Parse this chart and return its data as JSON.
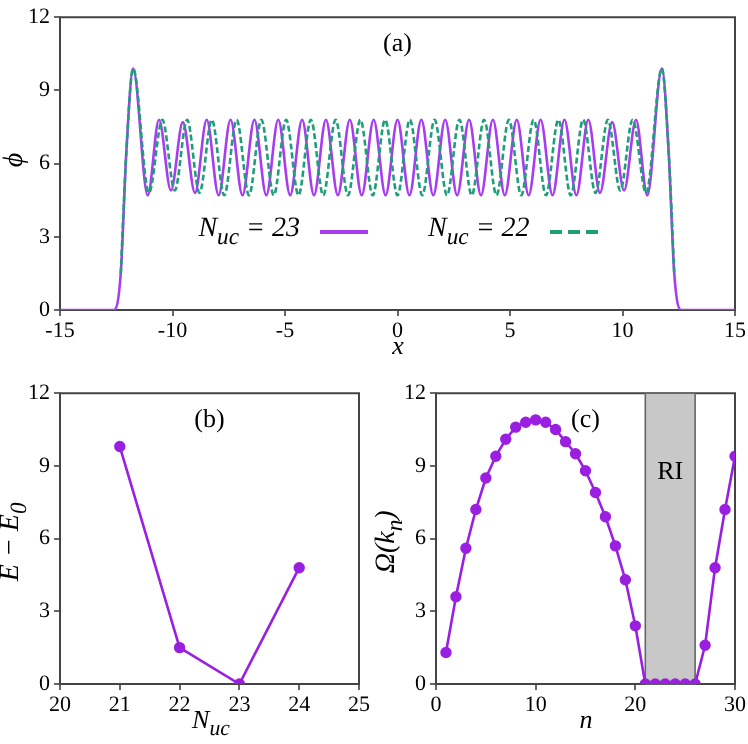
{
  "chart_data": [
    {
      "type": "line",
      "title": "(a)",
      "xlabel": "x",
      "ylabel": "ϕ",
      "xlim": [
        -15,
        15
      ],
      "xticks": [
        -15,
        -10,
        -5,
        0,
        5,
        10,
        15
      ],
      "ylim": [
        0,
        12
      ],
      "yticks": [
        0,
        3,
        6,
        9,
        12
      ],
      "legend": "bottom",
      "marker": "none",
      "series": [
        {
          "name": "N$_{uc}$ = 23",
          "color": "#a83cf0",
          "line_style": "solid",
          "x": [
            -15,
            -12.6,
            -12.3,
            -12.05,
            -11.75,
            -11.1,
            -10.6,
            -10.07,
            -9.54,
            -9.0,
            -8.48,
            -7.95,
            -7.42,
            -6.89,
            -6.36,
            -5.83,
            -5.3,
            -4.77,
            -4.24,
            -3.71,
            -3.18,
            -2.65,
            -2.12,
            -1.59,
            -1.06,
            -0.53,
            0,
            0.53,
            1.06,
            1.59,
            2.12,
            2.65,
            3.18,
            3.71,
            4.24,
            4.77,
            5.3,
            5.83,
            6.36,
            6.89,
            7.42,
            7.95,
            8.48,
            9.0,
            9.54,
            10.07,
            10.6,
            11.1,
            11.75,
            12.05,
            12.3,
            12.6,
            15
          ],
          "values": [
            0,
            0,
            1.5,
            6.5,
            9.9,
            4.7,
            7.8,
            4.9,
            7.7,
            4.8,
            7.8,
            4.7,
            7.8,
            4.7,
            7.8,
            4.7,
            7.8,
            4.7,
            7.8,
            4.7,
            7.8,
            4.7,
            7.8,
            4.7,
            7.8,
            4.7,
            7.8,
            4.7,
            7.8,
            4.7,
            7.8,
            4.7,
            7.8,
            4.7,
            7.8,
            4.7,
            7.8,
            4.7,
            7.8,
            4.7,
            7.8,
            4.7,
            7.8,
            4.8,
            7.7,
            4.9,
            7.8,
            4.7,
            9.9,
            6.5,
            1.5,
            0,
            0
          ]
        },
        {
          "name": "N$_{uc}$ = 22",
          "color": "#1f9e7a",
          "line_style": "dashed",
          "x": [
            -12.3,
            -12.05,
            -11.75,
            -11.05,
            -10.45,
            -9.9,
            -9.35,
            -8.8,
            -8.25,
            -7.7,
            -7.15,
            -6.6,
            -6.05,
            -5.5,
            -4.95,
            -4.4,
            -3.85,
            -3.3,
            -2.75,
            -2.2,
            -1.65,
            -1.1,
            -0.55,
            0,
            0.55,
            1.1,
            1.65,
            2.2,
            2.75,
            3.3,
            3.85,
            4.4,
            4.95,
            5.5,
            6.05,
            6.6,
            7.15,
            7.7,
            8.25,
            8.8,
            9.35,
            9.9,
            10.45,
            11.05,
            11.75,
            12.05,
            12.3
          ],
          "values": [
            1.5,
            6.5,
            9.9,
            4.8,
            7.8,
            4.9,
            7.8,
            4.8,
            7.8,
            4.7,
            7.8,
            4.7,
            7.8,
            4.7,
            7.8,
            4.7,
            7.8,
            4.7,
            7.8,
            4.7,
            7.8,
            4.7,
            7.8,
            4.7,
            7.8,
            4.7,
            7.8,
            4.7,
            7.8,
            4.7,
            7.8,
            4.7,
            7.8,
            4.7,
            7.8,
            4.7,
            7.8,
            4.7,
            7.8,
            4.8,
            7.8,
            4.9,
            7.8,
            4.8,
            9.9,
            6.5,
            1.5
          ]
        }
      ]
    },
    {
      "type": "line",
      "title": "(b)",
      "xlabel": "N$_{uc}$",
      "ylabel": "E − E$_{0}$",
      "xlim": [
        20,
        25
      ],
      "xticks": [
        20,
        21,
        22,
        23,
        24,
        25
      ],
      "ylim": [
        0,
        12
      ],
      "yticks": [
        0,
        3,
        6,
        9,
        12
      ],
      "marker": "circle",
      "series": [
        {
          "color": "#9a1fe0",
          "x": [
            21,
            22,
            23,
            24
          ],
          "values": [
            9.8,
            1.5,
            0,
            4.8
          ]
        }
      ]
    },
    {
      "type": "line",
      "title": "(c)",
      "xlabel": "n",
      "ylabel": "Ω(k$_{n}$)",
      "xlim": [
        0,
        30
      ],
      "xticks": [
        0,
        10,
        20,
        30
      ],
      "ylim": [
        0,
        12
      ],
      "yticks": [
        0,
        3,
        6,
        9,
        12
      ],
      "marker": "circle",
      "bands": [
        {
          "axis": "x",
          "from": 21,
          "to": 26,
          "label": "RI",
          "color": "#c8c8c8"
        }
      ],
      "series": [
        {
          "color": "#9a1fe0",
          "x": [
            1,
            2,
            3,
            4,
            5,
            6,
            7,
            8,
            9,
            10,
            11,
            12,
            13,
            14,
            15,
            16,
            17,
            18,
            19,
            20,
            21,
            22,
            23,
            24,
            25,
            26,
            27,
            28,
            29,
            30
          ],
          "values": [
            1.3,
            3.6,
            5.6,
            7.2,
            8.5,
            9.4,
            10.1,
            10.6,
            10.8,
            10.9,
            10.8,
            10.5,
            10.0,
            9.5,
            8.8,
            7.9,
            6.9,
            5.7,
            4.3,
            2.4,
            0,
            0,
            0,
            0,
            0,
            0,
            1.6,
            4.8,
            7.2,
            9.4
          ]
        }
      ]
    }
  ]
}
